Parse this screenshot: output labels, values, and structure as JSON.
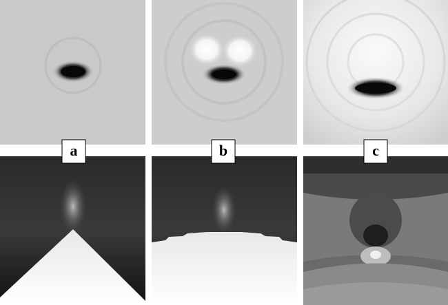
{
  "panels": {
    "labels": [
      "a",
      "b",
      "c"
    ]
  }
}
